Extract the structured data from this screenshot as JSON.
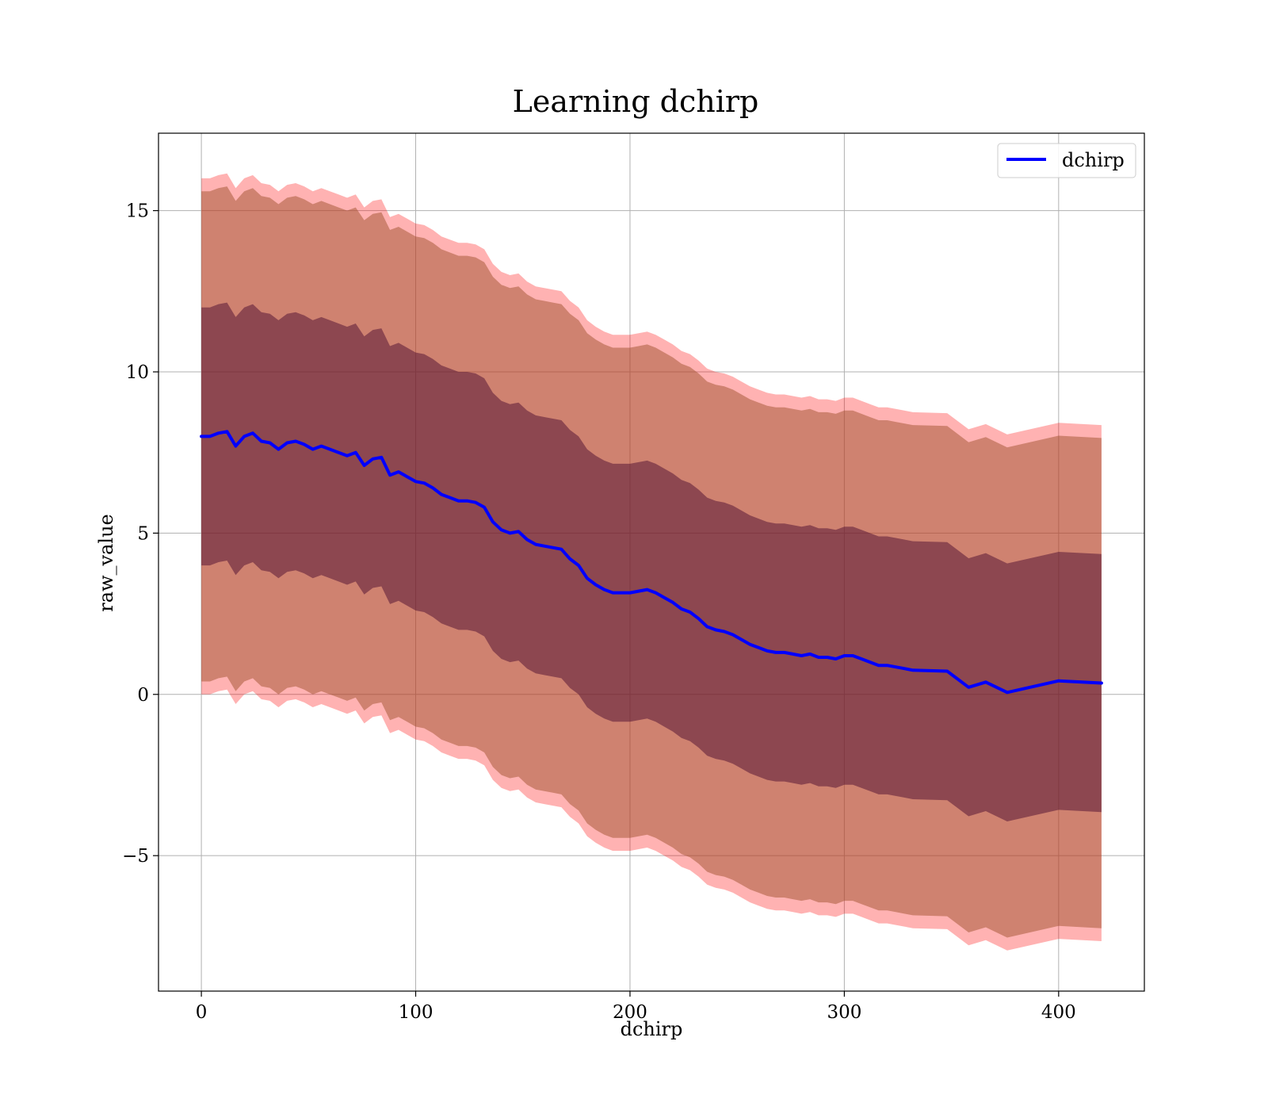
{
  "chart_data": {
    "type": "line",
    "title": "Learning dchirp",
    "xlabel": "dchirp",
    "ylabel": "raw_value",
    "xlim": [
      -20,
      440
    ],
    "ylim": [
      -9.2,
      17.4
    ],
    "grid": true,
    "legend": {
      "position": "top-right",
      "entries": [
        "dchirp"
      ]
    },
    "x_ticks": [
      0,
      100,
      200,
      300,
      400
    ],
    "x_tick_labels": [
      "0",
      "100",
      "200",
      "300",
      "400"
    ],
    "y_ticks": [
      -5,
      0,
      5,
      10,
      15
    ],
    "y_tick_labels": [
      "−5",
      "0",
      "5",
      "10",
      "15"
    ],
    "colors": {
      "line": "#0000ff",
      "band_outer": "#ff0000",
      "band_middle": "#a0522d",
      "band_inner": "#4b0b30",
      "grid": "#b0b0b0"
    },
    "band_alpha": {
      "outer": 0.3,
      "middle": 0.5,
      "inner": 0.5
    },
    "band_half_widths": {
      "outer": 8.0,
      "middle": 7.6,
      "inner": 4.0
    },
    "series": [
      {
        "name": "dchirp",
        "x": [
          0,
          4,
          8,
          12,
          16,
          20,
          24,
          28,
          32,
          36,
          40,
          44,
          48,
          52,
          56,
          60,
          64,
          68,
          72,
          76,
          80,
          84,
          88,
          92,
          96,
          100,
          104,
          108,
          112,
          116,
          120,
          124,
          128,
          132,
          136,
          140,
          144,
          148,
          152,
          156,
          160,
          164,
          168,
          172,
          176,
          180,
          184,
          188,
          192,
          196,
          200,
          204,
          208,
          212,
          216,
          220,
          224,
          228,
          232,
          236,
          240,
          244,
          248,
          252,
          256,
          260,
          264,
          268,
          272,
          276,
          280,
          284,
          288,
          292,
          296,
          300,
          304,
          308,
          312,
          316,
          320,
          324,
          328,
          332,
          348,
          358,
          366,
          376,
          400,
          420
        ],
        "y": [
          8.0,
          8.0,
          8.1,
          8.15,
          7.7,
          8.0,
          8.1,
          7.85,
          7.8,
          7.6,
          7.8,
          7.85,
          7.75,
          7.6,
          7.7,
          7.6,
          7.5,
          7.4,
          7.5,
          7.1,
          7.3,
          7.35,
          6.8,
          6.9,
          6.75,
          6.6,
          6.55,
          6.4,
          6.2,
          6.1,
          6.0,
          6.0,
          5.95,
          5.8,
          5.35,
          5.1,
          5.0,
          5.05,
          4.8,
          4.65,
          4.6,
          4.55,
          4.5,
          4.2,
          4.0,
          3.6,
          3.4,
          3.25,
          3.15,
          3.15,
          3.15,
          3.2,
          3.25,
          3.15,
          3.0,
          2.85,
          2.65,
          2.55,
          2.35,
          2.1,
          2.0,
          1.95,
          1.85,
          1.7,
          1.55,
          1.45,
          1.35,
          1.3,
          1.3,
          1.25,
          1.2,
          1.25,
          1.15,
          1.15,
          1.1,
          1.2,
          1.2,
          1.1,
          1.0,
          0.9,
          0.9,
          0.85,
          0.8,
          0.75,
          0.72,
          0.22,
          0.38,
          0.06,
          0.42,
          0.35
        ]
      }
    ]
  }
}
